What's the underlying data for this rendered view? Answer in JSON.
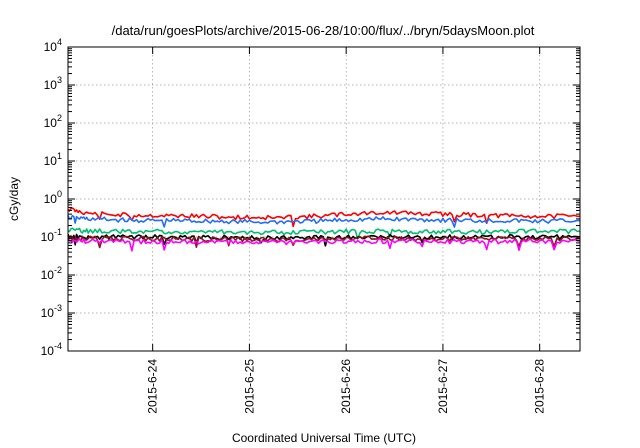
{
  "chart_data": {
    "type": "line",
    "title": "/data/run/goesPlots/archive/2015-06-28/10:00/flux/../bryn/5daysMoon.plot",
    "xlabel": "Coordinated Universal Time (UTC)",
    "ylabel": "cGy/day",
    "yscale": "log",
    "ylim": [
      0.0001,
      10000
    ],
    "xlim": [
      "2015-06-23T03:00",
      "2015-06-28T10:00"
    ],
    "yticks": [
      {
        "base": "10",
        "exp": "-4"
      },
      {
        "base": "10",
        "exp": "-3"
      },
      {
        "base": "10",
        "exp": "-2"
      },
      {
        "base": "10",
        "exp": "-1"
      },
      {
        "base": "10",
        "exp": "0"
      },
      {
        "base": "10",
        "exp": "1"
      },
      {
        "base": "10",
        "exp": "2"
      },
      {
        "base": "10",
        "exp": "3"
      },
      {
        "base": "10",
        "exp": "4"
      }
    ],
    "xticks": [
      "2015-6-24",
      "2015-6-25",
      "2015-6-26",
      "2015-6-27",
      "2015-6-28"
    ],
    "grid": true,
    "series": [
      {
        "color": "#ff0000",
        "x": [
          "2015-06-23T03:00",
          "2015-06-23T08:00",
          "2015-06-23T16:00",
          "2015-06-24T00:00",
          "2015-06-24T08:00",
          "2015-06-24T16:00",
          "2015-06-25T00:00",
          "2015-06-25T08:00",
          "2015-06-25T16:00",
          "2015-06-26T00:00",
          "2015-06-26T08:00",
          "2015-06-26T16:00",
          "2015-06-27T00:00",
          "2015-06-27T08:00",
          "2015-06-27T16:00",
          "2015-06-28T00:00",
          "2015-06-28T10:00"
        ],
        "values": [
          0.55,
          0.42,
          0.38,
          0.37,
          0.36,
          0.34,
          0.33,
          0.32,
          0.35,
          0.4,
          0.44,
          0.42,
          0.4,
          0.38,
          0.36,
          0.35,
          0.35
        ]
      },
      {
        "color": "#1e6fff",
        "x": [
          "2015-06-23T03:00",
          "2015-06-23T08:00",
          "2015-06-23T16:00",
          "2015-06-24T00:00",
          "2015-06-24T08:00",
          "2015-06-24T16:00",
          "2015-06-25T00:00",
          "2015-06-25T08:00",
          "2015-06-25T16:00",
          "2015-06-26T00:00",
          "2015-06-26T08:00",
          "2015-06-26T16:00",
          "2015-06-27T00:00",
          "2015-06-27T08:00",
          "2015-06-27T16:00",
          "2015-06-28T00:00",
          "2015-06-28T10:00"
        ],
        "values": [
          0.33,
          0.3,
          0.28,
          0.27,
          0.27,
          0.26,
          0.25,
          0.25,
          0.26,
          0.28,
          0.3,
          0.29,
          0.28,
          0.27,
          0.27,
          0.26,
          0.27
        ]
      },
      {
        "color": "#00c070",
        "x": [
          "2015-06-23T03:00",
          "2015-06-23T08:00",
          "2015-06-23T16:00",
          "2015-06-24T00:00",
          "2015-06-24T08:00",
          "2015-06-24T16:00",
          "2015-06-25T00:00",
          "2015-06-25T08:00",
          "2015-06-25T16:00",
          "2015-06-26T00:00",
          "2015-06-26T08:00",
          "2015-06-26T16:00",
          "2015-06-27T00:00",
          "2015-06-27T08:00",
          "2015-06-27T16:00",
          "2015-06-28T00:00",
          "2015-06-28T10:00"
        ],
        "values": [
          0.15,
          0.145,
          0.14,
          0.14,
          0.14,
          0.135,
          0.135,
          0.13,
          0.135,
          0.14,
          0.145,
          0.14,
          0.14,
          0.135,
          0.14,
          0.14,
          0.14
        ]
      },
      {
        "color": "#000000",
        "x": [
          "2015-06-23T03:00",
          "2015-06-23T08:00",
          "2015-06-23T16:00",
          "2015-06-24T00:00",
          "2015-06-24T08:00",
          "2015-06-24T16:00",
          "2015-06-25T00:00",
          "2015-06-25T08:00",
          "2015-06-25T16:00",
          "2015-06-26T00:00",
          "2015-06-26T08:00",
          "2015-06-26T16:00",
          "2015-06-27T00:00",
          "2015-06-27T08:00",
          "2015-06-27T16:00",
          "2015-06-28T00:00",
          "2015-06-28T10:00"
        ],
        "values": [
          0.105,
          0.1,
          0.1,
          0.1,
          0.098,
          0.097,
          0.095,
          0.095,
          0.097,
          0.1,
          0.102,
          0.1,
          0.1,
          0.098,
          0.1,
          0.1,
          0.1
        ]
      },
      {
        "color": "#8b1a1a",
        "x": [
          "2015-06-23T03:00",
          "2015-06-23T08:00",
          "2015-06-23T16:00",
          "2015-06-24T00:00",
          "2015-06-24T08:00",
          "2015-06-24T16:00",
          "2015-06-25T00:00",
          "2015-06-25T08:00",
          "2015-06-25T16:00",
          "2015-06-26T00:00",
          "2015-06-26T08:00",
          "2015-06-26T16:00",
          "2015-06-27T00:00",
          "2015-06-27T08:00",
          "2015-06-27T16:00",
          "2015-06-28T00:00",
          "2015-06-28T10:00"
        ],
        "values": [
          0.095,
          0.092,
          0.09,
          0.09,
          0.088,
          0.088,
          0.087,
          0.086,
          0.088,
          0.09,
          0.092,
          0.09,
          0.09,
          0.089,
          0.09,
          0.09,
          0.09
        ]
      },
      {
        "color": "#ff00ff",
        "x": [
          "2015-06-23T03:00",
          "2015-06-23T08:00",
          "2015-06-23T16:00",
          "2015-06-24T00:00",
          "2015-06-24T08:00",
          "2015-06-24T16:00",
          "2015-06-25T00:00",
          "2015-06-25T08:00",
          "2015-06-25T16:00",
          "2015-06-26T00:00",
          "2015-06-26T08:00",
          "2015-06-26T16:00",
          "2015-06-27T00:00",
          "2015-06-27T08:00",
          "2015-06-27T16:00",
          "2015-06-28T00:00",
          "2015-06-28T10:00"
        ],
        "values": [
          0.08,
          0.078,
          0.076,
          0.075,
          0.075,
          0.074,
          0.073,
          0.072,
          0.074,
          0.076,
          0.078,
          0.077,
          0.076,
          0.075,
          0.076,
          0.077,
          0.078
        ]
      }
    ]
  }
}
